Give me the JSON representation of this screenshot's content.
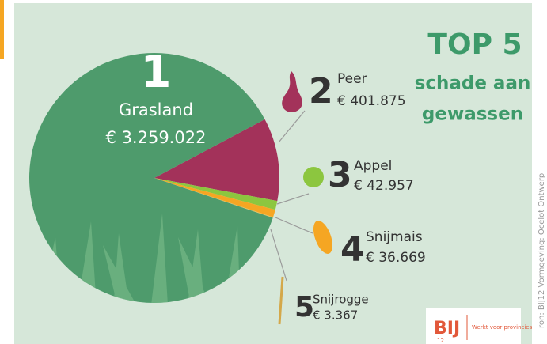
{
  "chart_data": {
    "type": "pie",
    "title_lines": [
      "TOP 5",
      "schade aan",
      "gewassen"
    ],
    "ranks": [
      1,
      2,
      3,
      4,
      5
    ],
    "categories": [
      "Grasland",
      "Peer",
      "Appel",
      "Snijmais",
      "Snijrogge"
    ],
    "values": [
      3259022,
      401875,
      42957,
      36669,
      3367
    ],
    "value_labels": [
      "€ 3.259.022",
      "€ 401.875",
      "€ 42.957",
      "€ 36.669",
      "€ 3.367"
    ],
    "colors": [
      "#4e9b6c",
      "#a3325a",
      "#8cc63f",
      "#f5a623",
      "#e3c15f"
    ],
    "source": "ron: BIJ12   Vormgeving: Ocelot Ontwerp",
    "logo": {
      "name": "BIJ",
      "number": "12",
      "tagline": "Werkt voor provincies"
    }
  }
}
